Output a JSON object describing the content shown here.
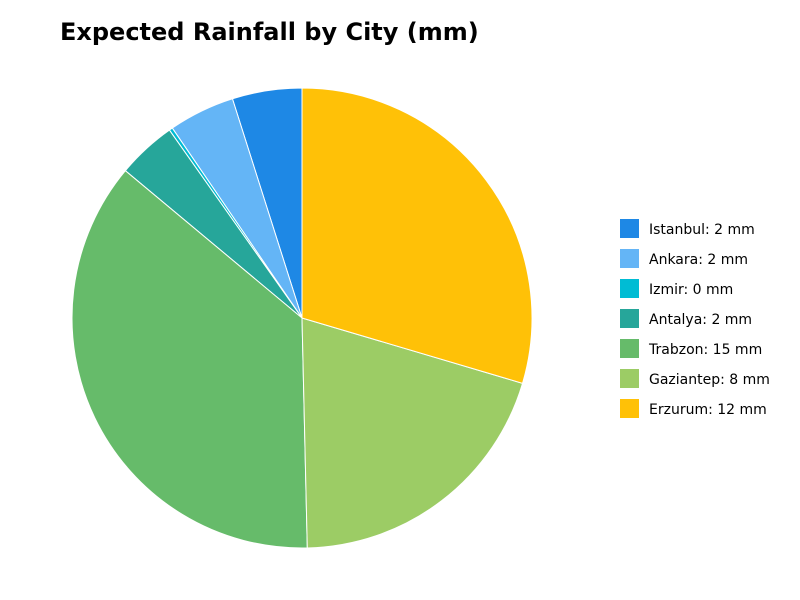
{
  "chart_data": {
    "type": "pie",
    "title": "Expected Rainfall by City (mm)",
    "categories": [
      "Istanbul: 2 mm",
      "Ankara: 2 mm",
      "Izmir: 0 mm",
      "Antalya: 2 mm",
      "Trabzon: 15 mm",
      "Gaziantep: 8 mm",
      "Erzurum: 12 mm"
    ],
    "values": [
      2.0,
      1.9,
      0.1,
      1.7,
      14.9,
      8.2,
      12.1
    ],
    "colors": [
      "#1e88e5",
      "#64b5f6",
      "#00bcd4",
      "#26a69a",
      "#66bb6a",
      "#9ccc65",
      "#ffc107"
    ],
    "start_angle": 90,
    "direction": "counterclockwise",
    "legend": "right"
  }
}
